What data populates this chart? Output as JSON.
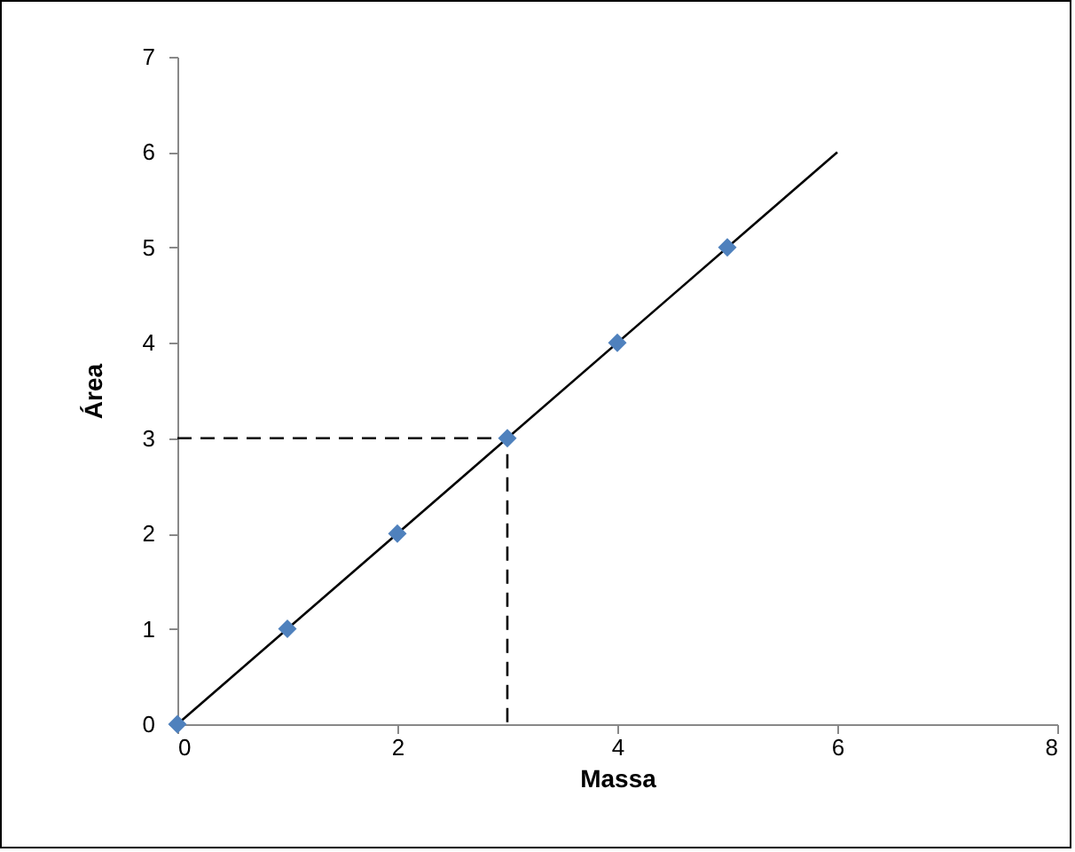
{
  "chart_data": {
    "type": "scatter",
    "xlabel": "Massa",
    "ylabel": "Área",
    "xlim": [
      0,
      8
    ],
    "xticks": [
      0,
      2,
      4,
      6,
      8
    ],
    "ylim": [
      0,
      7
    ],
    "yticks": [
      0,
      1,
      2,
      3,
      4,
      5,
      6,
      7
    ],
    "grid": false,
    "series": [
      {
        "type": "line",
        "color": "#000000",
        "x": [
          0,
          6
        ],
        "values": [
          0,
          6
        ],
        "line_style": "solid"
      },
      {
        "type": "line",
        "color": "#000000",
        "x": [
          0,
          3,
          3
        ],
        "values": [
          3,
          3,
          0
        ],
        "line_style": "dashed"
      },
      {
        "color": "#4f81bd",
        "marker": "diamond",
        "x": [
          0,
          1,
          2,
          3,
          4,
          5
        ],
        "values": [
          0,
          1,
          2,
          3,
          4,
          5
        ]
      }
    ]
  }
}
